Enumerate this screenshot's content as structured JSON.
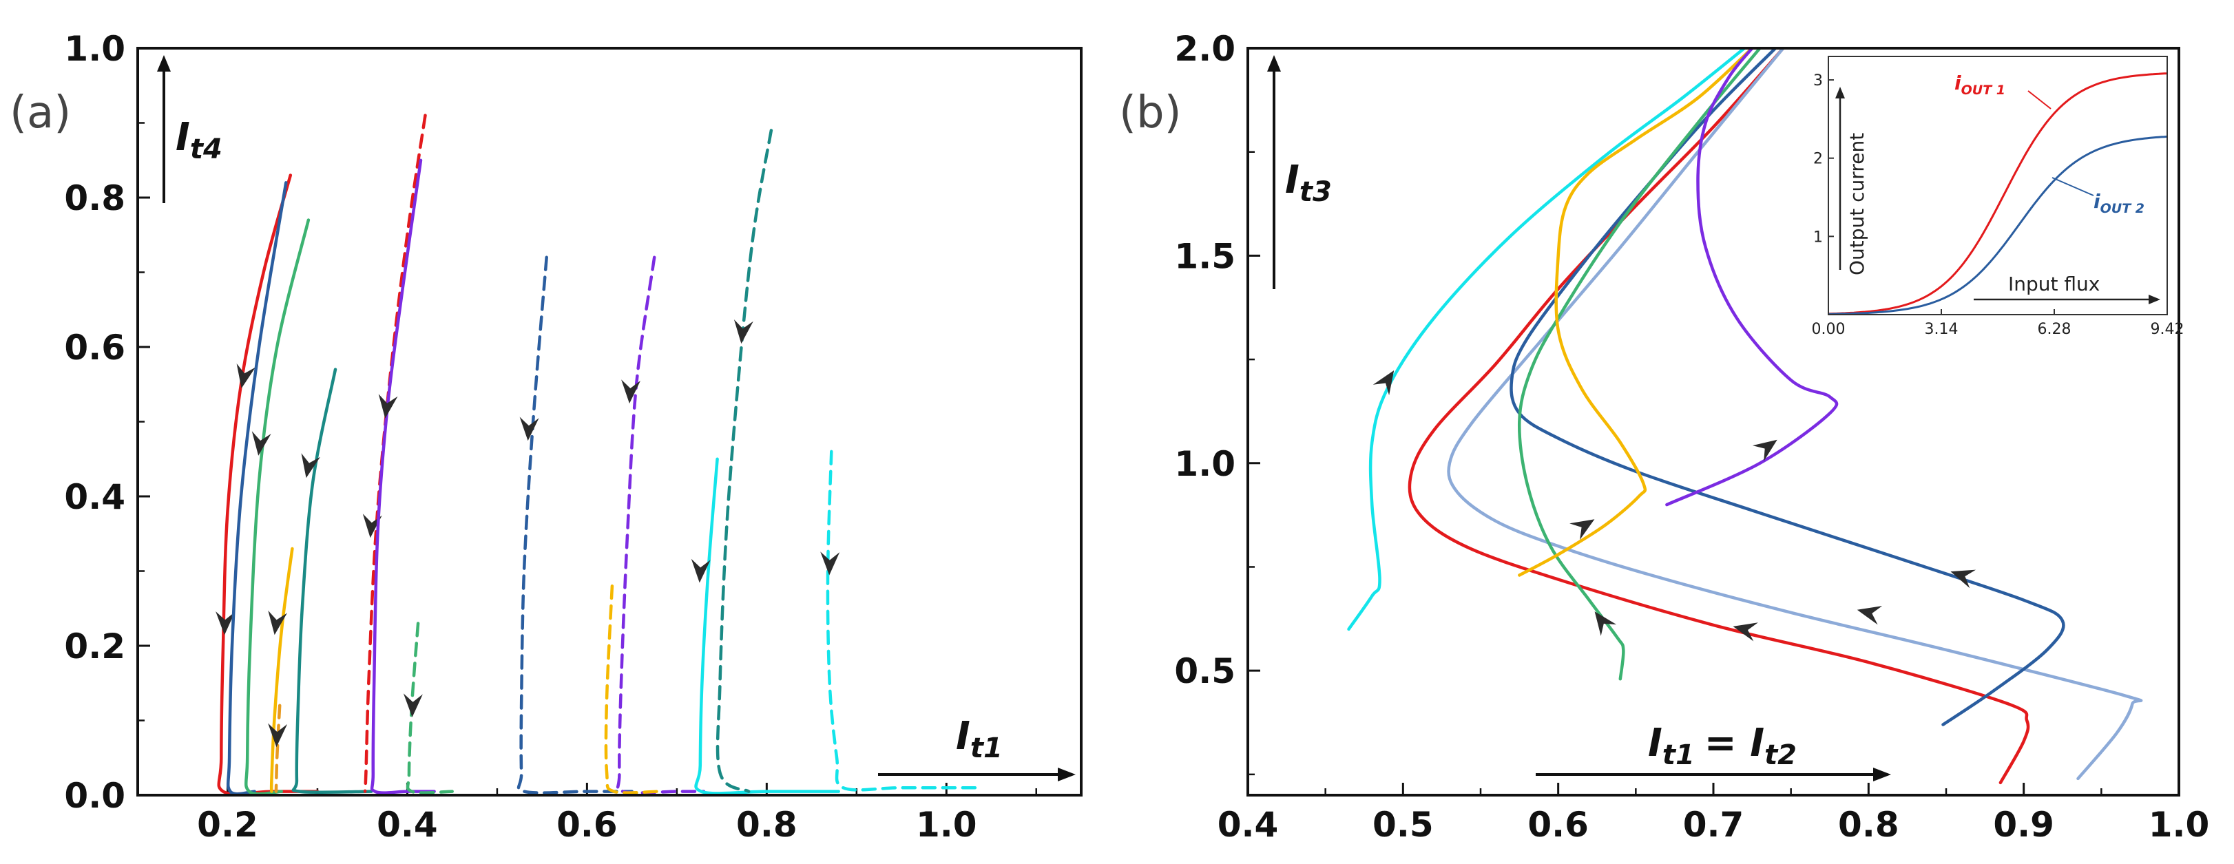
{
  "chart_data": [
    {
      "type": "line",
      "panel_label": "(a)",
      "title": "",
      "xlabel": "I",
      "xlabel_sub": "t1",
      "ylabel": "I",
      "ylabel_sub": "t4",
      "xlim": [
        0.1,
        1.15
      ],
      "ylim": [
        0.0,
        1.0
      ],
      "xticks": [
        0.2,
        0.4,
        0.6,
        0.8,
        1.0
      ],
      "xtick_labels": [
        "0.2",
        "0.4",
        "0.6",
        "0.8",
        "1.0"
      ],
      "yticks": [
        0.0,
        0.2,
        0.4,
        0.6,
        0.8,
        1.0
      ],
      "ytick_labels": [
        "0.0",
        "0.2",
        "0.4",
        "0.6",
        "0.8",
        "1.0"
      ],
      "series": [
        {
          "name": "red",
          "color": "#e31a1c",
          "style": "solid",
          "x": [
            0.27,
            0.24,
            0.215,
            0.2,
            0.195,
            0.193,
            0.195,
            0.25,
            0.3
          ],
          "y": [
            0.83,
            0.7,
            0.55,
            0.38,
            0.2,
            0.05,
            0.005,
            0.005,
            0.005
          ],
          "arrows": [
            {
              "x": 0.218,
              "y": 0.56
            },
            {
              "x": 0.197,
              "y": 0.23
            }
          ]
        },
        {
          "name": "blue",
          "color": "#2a5d9f",
          "style": "solid",
          "x": [
            0.265,
            0.235,
            0.215,
            0.205,
            0.202,
            0.203,
            0.23
          ],
          "y": [
            0.82,
            0.6,
            0.4,
            0.2,
            0.05,
            0.005,
            0.005
          ],
          "arrows": []
        },
        {
          "name": "green",
          "color": "#3cb371",
          "style": "solid",
          "x": [
            0.29,
            0.255,
            0.235,
            0.225,
            0.222,
            0.224,
            0.26
          ],
          "y": [
            0.77,
            0.6,
            0.42,
            0.2,
            0.05,
            0.005,
            0.005
          ],
          "arrows": [
            {
              "x": 0.236,
              "y": 0.47
            }
          ]
        },
        {
          "name": "teal",
          "color": "#1a8a85",
          "style": "solid",
          "x": [
            0.32,
            0.295,
            0.283,
            0.278,
            0.277,
            0.28,
            0.36
          ],
          "y": [
            0.57,
            0.42,
            0.25,
            0.1,
            0.02,
            0.005,
            0.005
          ],
          "arrows": [
            {
              "x": 0.29,
              "y": 0.44
            }
          ]
        },
        {
          "name": "orange",
          "color": "#f5b800",
          "style": "solid",
          "x": [
            0.272,
            0.26,
            0.252,
            0.249,
            0.249
          ],
          "y": [
            0.33,
            0.22,
            0.1,
            0.02,
            0.005
          ],
          "arrows": [
            {
              "x": 0.254,
              "y": 0.23
            }
          ]
        },
        {
          "name": "orange-dash",
          "color": "#e89a20",
          "style": "dashed",
          "x": [
            0.258,
            0.255,
            0.254
          ],
          "y": [
            0.12,
            0.05,
            0.005
          ],
          "arrows": [
            {
              "x": 0.255,
              "y": 0.08
            }
          ]
        },
        {
          "name": "red-dash",
          "color": "#e31a1c",
          "style": "dashed",
          "x": [
            0.42,
            0.4,
            0.38,
            0.365,
            0.357,
            0.354,
            0.353
          ],
          "y": [
            0.91,
            0.75,
            0.55,
            0.35,
            0.15,
            0.03,
            0.005
          ],
          "arrows": [
            {
              "x": 0.36,
              "y": 0.36
            }
          ]
        },
        {
          "name": "violet",
          "color": "#7b2be2",
          "style": "solid",
          "x": [
            0.415,
            0.395,
            0.378,
            0.367,
            0.363,
            0.362,
            0.364,
            0.4,
            0.43
          ],
          "y": [
            0.85,
            0.68,
            0.52,
            0.35,
            0.15,
            0.03,
            0.005,
            0.005,
            0.005
          ],
          "arrows": [
            {
              "x": 0.377,
              "y": 0.52
            }
          ]
        },
        {
          "name": "green-dash",
          "color": "#3cb371",
          "style": "dashed",
          "x": [
            0.412,
            0.405,
            0.402,
            0.405,
            0.45
          ],
          "y": [
            0.23,
            0.12,
            0.03,
            0.005,
            0.005
          ],
          "arrows": [
            {
              "x": 0.406,
              "y": 0.12
            }
          ]
        },
        {
          "name": "blue-dash",
          "color": "#2a5d9f",
          "style": "dashed",
          "x": [
            0.555,
            0.54,
            0.53,
            0.527,
            0.527,
            0.53,
            0.6,
            0.65
          ],
          "y": [
            0.72,
            0.5,
            0.3,
            0.12,
            0.03,
            0.005,
            0.005,
            0.005
          ],
          "arrows": [
            {
              "x": 0.535,
              "y": 0.49
            }
          ]
        },
        {
          "name": "violet-dash",
          "color": "#7b2be2",
          "style": "dashed",
          "x": [
            0.675,
            0.655,
            0.645,
            0.638,
            0.636,
            0.64,
            0.7,
            0.73
          ],
          "y": [
            0.72,
            0.55,
            0.35,
            0.15,
            0.03,
            0.005,
            0.005,
            0.005
          ],
          "arrows": [
            {
              "x": 0.648,
              "y": 0.54
            }
          ]
        },
        {
          "name": "orange-dash-2",
          "color": "#f5b800",
          "style": "dashed",
          "x": [
            0.628,
            0.622,
            0.622,
            0.63,
            0.68
          ],
          "y": [
            0.28,
            0.13,
            0.03,
            0.005,
            0.005
          ],
          "arrows": []
        },
        {
          "name": "cyan",
          "color": "#13e4ea",
          "style": "solid",
          "x": [
            0.745,
            0.735,
            0.728,
            0.726,
            0.727,
            0.8,
            0.88
          ],
          "y": [
            0.45,
            0.3,
            0.15,
            0.04,
            0.005,
            0.005,
            0.005
          ],
          "arrows": [
            {
              "x": 0.726,
              "y": 0.3
            }
          ]
        },
        {
          "name": "teal-dash",
          "color": "#1a8a85",
          "style": "dashed",
          "x": [
            0.805,
            0.785,
            0.768,
            0.755,
            0.748,
            0.748,
            0.78
          ],
          "y": [
            0.89,
            0.75,
            0.55,
            0.35,
            0.15,
            0.03,
            0.005
          ],
          "arrows": [
            {
              "x": 0.773,
              "y": 0.62
            }
          ]
        },
        {
          "name": "cyan-dash",
          "color": "#13e4ea",
          "style": "dashed",
          "x": [
            0.872,
            0.868,
            0.87,
            0.878,
            0.885,
            0.95,
            1.04
          ],
          "y": [
            0.46,
            0.3,
            0.15,
            0.05,
            0.01,
            0.01,
            0.01
          ],
          "arrows": [
            {
              "x": 0.87,
              "y": 0.31
            }
          ]
        }
      ]
    },
    {
      "type": "line",
      "panel_label": "(b)",
      "title": "",
      "xlabel": "I",
      "xlabel_sub": "t1",
      "xlabel_eq": "= I",
      "xlabel_sub2": "t2",
      "ylabel": "I",
      "ylabel_sub": "t3",
      "xlim": [
        0.4,
        1.0
      ],
      "ylim": [
        0.2,
        2.0
      ],
      "xticks": [
        0.4,
        0.5,
        0.6,
        0.7,
        0.8,
        0.9,
        1.0
      ],
      "xtick_labels": [
        "0.4",
        "0.5",
        "0.6",
        "0.7",
        "0.8",
        "0.9",
        "1.0"
      ],
      "yticks": [
        0.5,
        1.0,
        1.5,
        2.0
      ],
      "ytick_labels": [
        "0.5",
        "1.0",
        "1.5",
        "2.0"
      ],
      "series": [
        {
          "name": "cyan",
          "color": "#13e4ea",
          "x": [
            0.465,
            0.48,
            0.485,
            0.48,
            0.48,
            0.49,
            0.52,
            0.57,
            0.63,
            0.68,
            0.72
          ],
          "y": [
            0.6,
            0.68,
            0.72,
            0.9,
            1.05,
            1.18,
            1.35,
            1.55,
            1.74,
            1.88,
            2.0
          ],
          "arrows": [
            {
              "x": 0.49,
              "y": 1.2
            }
          ]
        },
        {
          "name": "red",
          "color": "#e31a1c",
          "x": [
            0.885,
            0.9,
            0.902,
            0.89,
            0.8,
            0.7,
            0.6,
            0.54,
            0.51,
            0.505,
            0.52,
            0.56,
            0.6,
            0.65,
            0.7,
            0.745
          ],
          "y": [
            0.23,
            0.33,
            0.38,
            0.42,
            0.52,
            0.61,
            0.72,
            0.8,
            0.88,
            0.97,
            1.08,
            1.24,
            1.42,
            1.62,
            1.81,
            2.0
          ],
          "arrows": [
            {
              "x": 0.72,
              "y": 0.6
            }
          ]
        },
        {
          "name": "lightblue",
          "color": "#8caad8",
          "x": [
            0.935,
            0.96,
            0.97,
            0.965,
            0.85,
            0.75,
            0.66,
            0.6,
            0.56,
            0.535,
            0.53,
            0.545,
            0.59,
            0.64,
            0.69,
            0.745
          ],
          "y": [
            0.24,
            0.35,
            0.42,
            0.44,
            0.55,
            0.64,
            0.73,
            0.8,
            0.86,
            0.93,
            1.0,
            1.1,
            1.3,
            1.52,
            1.75,
            2.0
          ],
          "arrows": [
            {
              "x": 0.8,
              "y": 0.64
            }
          ]
        },
        {
          "name": "blue",
          "color": "#2a5d9f",
          "x": [
            0.848,
            0.88,
            0.915,
            0.925,
            0.9,
            0.82,
            0.73,
            0.65,
            0.6,
            0.575,
            0.57,
            0.58,
            0.62,
            0.66,
            0.7,
            0.74
          ],
          "y": [
            0.37,
            0.45,
            0.55,
            0.62,
            0.67,
            0.77,
            0.88,
            0.98,
            1.06,
            1.12,
            1.2,
            1.3,
            1.5,
            1.68,
            1.85,
            2.0
          ],
          "arrows": [
            {
              "x": 0.86,
              "y": 0.73
            }
          ]
        },
        {
          "name": "green",
          "color": "#3cb371",
          "x": [
            0.64,
            0.642,
            0.638,
            0.62,
            0.595,
            0.58,
            0.575,
            0.582,
            0.6,
            0.64,
            0.69,
            0.73
          ],
          "y": [
            0.48,
            0.55,
            0.58,
            0.67,
            0.8,
            0.95,
            1.1,
            1.22,
            1.35,
            1.58,
            1.82,
            2.0
          ],
          "arrows": [
            {
              "x": 0.628,
              "y": 0.62
            }
          ]
        },
        {
          "name": "orange",
          "color": "#f5b800",
          "x": [
            0.575,
            0.6,
            0.63,
            0.652,
            0.655,
            0.64,
            0.615,
            0.6,
            0.6,
            0.605,
            0.62,
            0.65,
            0.69,
            0.725
          ],
          "y": [
            0.73,
            0.78,
            0.85,
            0.92,
            0.95,
            1.05,
            1.18,
            1.32,
            1.5,
            1.62,
            1.7,
            1.78,
            1.88,
            2.0
          ],
          "arrows": [
            {
              "x": 0.617,
              "y": 0.85
            }
          ]
        },
        {
          "name": "violet",
          "color": "#7b2be2",
          "x": [
            0.67,
            0.73,
            0.775,
            0.775,
            0.75,
            0.715,
            0.695,
            0.69,
            0.695,
            0.71,
            0.725
          ],
          "y": [
            0.9,
            1.0,
            1.12,
            1.16,
            1.2,
            1.35,
            1.52,
            1.68,
            1.82,
            1.93,
            2.0
          ],
          "arrows": [
            {
              "x": 0.735,
              "y": 1.04
            }
          ]
        }
      ],
      "inset": {
        "type": "line",
        "ylabel": "Output current",
        "xlabel": "Input flux",
        "xlim": [
          0,
          9.42
        ],
        "ylim": [
          0,
          3.3
        ],
        "xticks": [
          0.0,
          3.14,
          6.28,
          9.42
        ],
        "xtick_labels": [
          "0.00",
          "3.14",
          "6.28",
          "9.42"
        ],
        "yticks": [
          1,
          2,
          3
        ],
        "ytick_labels": [
          "1",
          "2",
          "3"
        ],
        "series": [
          {
            "name": "i_OUT 1",
            "label_main": "i",
            "label_sub": "OUT 1",
            "color": "#e31a1c",
            "midpoint": 4.9,
            "steepness": 1.15,
            "max": 3.1
          },
          {
            "name": "i_OUT 2",
            "label_main": "i",
            "label_sub": "OUT 2",
            "color": "#2a5d9f",
            "midpoint": 5.3,
            "steepness": 1.1,
            "max": 2.3
          }
        ]
      }
    }
  ]
}
